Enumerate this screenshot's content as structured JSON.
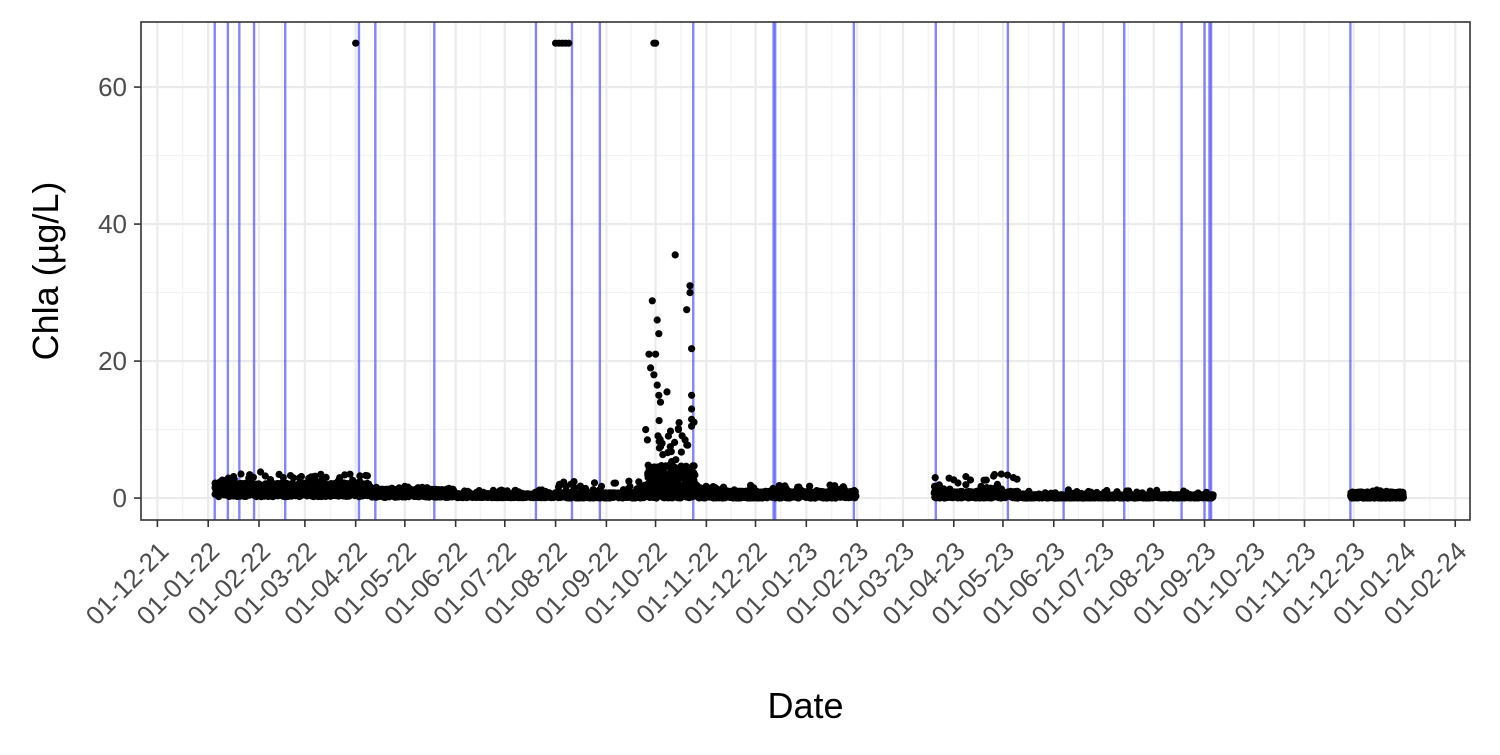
{
  "chart_data": {
    "type": "scatter",
    "title": "",
    "xlabel": "Date",
    "ylabel": "Chla (µg/L)",
    "x_type": "date",
    "x_tick_format": "DD-MM-YY",
    "xlim": [
      "2021-11-21",
      "2024-02-10"
    ],
    "ylim": [
      -3.2,
      69.5
    ],
    "x_ticks": [
      "01-12-21",
      "01-01-22",
      "01-02-22",
      "01-03-22",
      "01-04-22",
      "01-05-22",
      "01-06-22",
      "01-07-22",
      "01-08-22",
      "01-09-22",
      "01-10-22",
      "01-11-22",
      "01-12-22",
      "01-01-23",
      "01-02-23",
      "01-03-23",
      "01-04-23",
      "01-05-23",
      "01-06-23",
      "01-07-23",
      "01-08-23",
      "01-09-23",
      "01-10-23",
      "01-11-23",
      "01-12-23",
      "01-01-24",
      "01-02-24"
    ],
    "y_ticks": [
      0,
      20,
      40,
      60
    ],
    "grid": true,
    "legend": "none",
    "point_color": "#000000",
    "vline_color": "#5b5bff",
    "vlines": [
      "2022-01-05",
      "2022-01-13",
      "2022-01-20",
      "2022-01-29",
      "2022-02-17",
      "2022-04-03",
      "2022-04-13",
      "2022-05-19",
      "2022-07-20",
      "2022-08-11",
      "2022-08-28",
      "2022-10-24",
      "2022-12-12",
      "2022-12-13",
      "2023-01-30",
      "2023-03-21",
      "2023-05-04",
      "2023-06-07",
      "2023-07-14",
      "2023-08-18",
      "2023-09-01",
      "2023-09-04",
      "2023-09-05",
      "2023-11-29"
    ],
    "segments": [
      {
        "start": "2022-01-05",
        "end": "2022-04-09",
        "base": 1.2,
        "spread": 1.0,
        "max": 3.6
      },
      {
        "start": "2022-04-10",
        "end": "2022-05-31",
        "base": 0.7,
        "spread": 0.6,
        "max": 1.7
      },
      {
        "start": "2022-06-01",
        "end": "2022-07-31",
        "base": 0.35,
        "spread": 0.3,
        "max": 1.2
      },
      {
        "start": "2022-08-01",
        "end": "2022-09-25",
        "base": 0.4,
        "spread": 0.4,
        "max": 2.5
      },
      {
        "start": "2022-09-26",
        "end": "2022-10-25",
        "base": 1.8,
        "spread": 3.0,
        "max": 12
      },
      {
        "start": "2022-10-26",
        "end": "2023-01-31",
        "base": 0.5,
        "spread": 0.5,
        "max": 2.0
      },
      {
        "start": "2023-03-20",
        "end": "2023-05-10",
        "base": 0.5,
        "spread": 0.5,
        "max": 3.5
      },
      {
        "start": "2023-05-11",
        "end": "2023-09-06",
        "base": 0.25,
        "spread": 0.25,
        "max": 1.2
      },
      {
        "start": "2023-11-29",
        "end": "2023-12-31",
        "base": 0.4,
        "spread": 0.5,
        "max": 1.2
      }
    ],
    "outliers": [
      {
        "x": "2022-04-01",
        "y": 66.4
      },
      {
        "x": "2022-08-01",
        "y": 66.4
      },
      {
        "x": "2022-08-03",
        "y": 66.4
      },
      {
        "x": "2022-08-05",
        "y": 66.4
      },
      {
        "x": "2022-08-07",
        "y": 66.4
      },
      {
        "x": "2022-08-09",
        "y": 66.4
      },
      {
        "x": "2022-09-30",
        "y": 66.4
      },
      {
        "x": "2022-10-01",
        "y": 66.4
      },
      {
        "x": "2022-10-13",
        "y": 35.5
      },
      {
        "x": "2022-10-22",
        "y": 31.0
      },
      {
        "x": "2022-10-22",
        "y": 30.0
      },
      {
        "x": "2022-09-29",
        "y": 28.8
      },
      {
        "x": "2022-10-20",
        "y": 27.5
      },
      {
        "x": "2022-10-02",
        "y": 26.0
      },
      {
        "x": "2022-10-03",
        "y": 24.0
      },
      {
        "x": "2022-10-23",
        "y": 21.8
      },
      {
        "x": "2022-09-27",
        "y": 21.0
      },
      {
        "x": "2022-10-01",
        "y": 21.0
      },
      {
        "x": "2022-09-28",
        "y": 19.0
      },
      {
        "x": "2022-09-30",
        "y": 18.0
      },
      {
        "x": "2022-10-02",
        "y": 16.5
      },
      {
        "x": "2022-10-08",
        "y": 15.5
      },
      {
        "x": "2022-10-03",
        "y": 15.0
      },
      {
        "x": "2022-10-23",
        "y": 15.0
      },
      {
        "x": "2022-10-04",
        "y": 14.0
      },
      {
        "x": "2022-10-23",
        "y": 13.0
      },
      {
        "x": "2022-10-23",
        "y": 11.5
      },
      {
        "x": "2022-10-23",
        "y": 10.5
      },
      {
        "x": "2022-09-25",
        "y": 10.0
      },
      {
        "x": "2022-10-15",
        "y": 10.0
      },
      {
        "x": "2022-09-26",
        "y": 8.5
      },
      {
        "x": "2022-10-05",
        "y": 8.0
      },
      {
        "x": "2022-10-10",
        "y": 7.5
      },
      {
        "x": "2022-10-19",
        "y": 8.5
      },
      {
        "x": "2022-02-02",
        "y": 3.8
      },
      {
        "x": "2022-05-01",
        "y": 1.7
      },
      {
        "x": "2023-04-30",
        "y": 3.5
      }
    ]
  }
}
